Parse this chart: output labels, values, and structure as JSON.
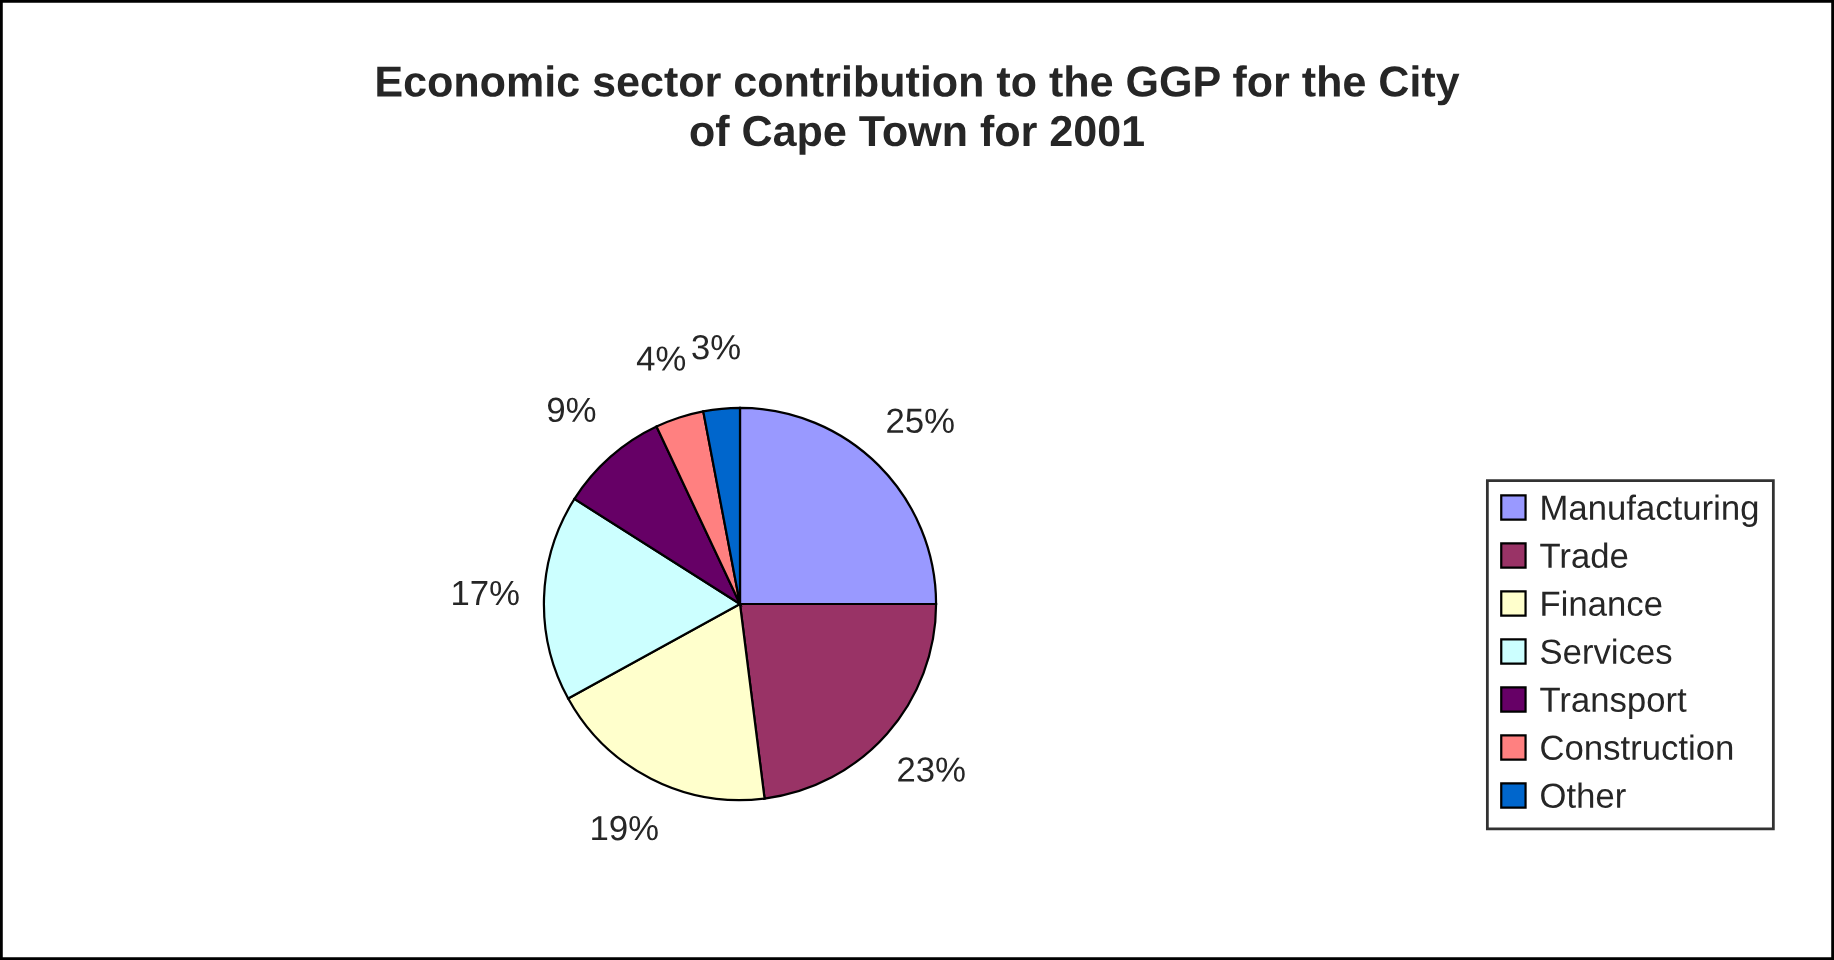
{
  "chart_data": {
    "type": "pie",
    "title": "Economic sector contribution to the GGP for the City\nof Cape Town for 2001",
    "categories": [
      "Manufacturing",
      "Trade",
      "Finance",
      "Services",
      "Transport",
      "Construction",
      "Other"
    ],
    "values": [
      25,
      23,
      19,
      17,
      9,
      4,
      3
    ],
    "value_labels": [
      "25%",
      "23%",
      "19%",
      "17%",
      "9%",
      "4%",
      "3%"
    ],
    "colors": [
      "#9999ff",
      "#993366",
      "#ffffcc",
      "#ccffff",
      "#660066",
      "#ff8080",
      "#0066cc"
    ],
    "legend": "right"
  }
}
